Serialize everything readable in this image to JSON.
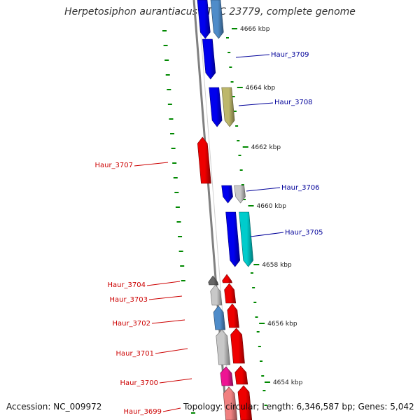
{
  "title": "Herpetosiphon aurantiacus ATCC 23779, complete genome",
  "footer": {
    "accession": "Accession: NC_009972",
    "topology": "Topology: circular; Length: 6,346,587 bp; Genes: 5,042"
  },
  "colors": {
    "forward_label": "#cc0000",
    "reverse_label": "#000099",
    "backbone": "#808080",
    "gc_skew": "#008800"
  },
  "ticks": [
    {
      "label": "4666 kbp"
    },
    {
      "label": "4664 kbp"
    },
    {
      "label": "4662 kbp"
    },
    {
      "label": "4660 kbp"
    },
    {
      "label": "4658 kbp"
    },
    {
      "label": "4656 kbp"
    },
    {
      "label": "4654 kbp"
    }
  ],
  "labels": [
    {
      "text": "Haur_3709",
      "strand": "reverse"
    },
    {
      "text": "Haur_3708",
      "strand": "reverse"
    },
    {
      "text": "Haur_3707",
      "strand": "forward"
    },
    {
      "text": "Haur_3706",
      "strand": "reverse"
    },
    {
      "text": "Haur_3705",
      "strand": "reverse"
    },
    {
      "text": "Haur_3704",
      "strand": "forward"
    },
    {
      "text": "Haur_3703",
      "strand": "forward"
    },
    {
      "text": "Haur_3702",
      "strand": "forward"
    },
    {
      "text": "Haur_3701",
      "strand": "forward"
    },
    {
      "text": "Haur_3700",
      "strand": "forward"
    },
    {
      "text": "Haur_3699",
      "strand": "forward"
    }
  ],
  "genes": [
    {
      "color": "#0000ee",
      "strand": "reverse"
    },
    {
      "color": "#4f8cc9",
      "strand": "reverse"
    },
    {
      "color": "#0000ee",
      "strand": "reverse"
    },
    {
      "color": "#0000ee",
      "strand": "reverse"
    },
    {
      "color": "#bdb76b",
      "strand": "reverse"
    },
    {
      "color": "#ee0000",
      "strand": "forward"
    },
    {
      "color": "#0000ee",
      "strand": "reverse"
    },
    {
      "color": "#c8c8c8",
      "strand": "reverse"
    },
    {
      "color": "#0000ee",
      "strand": "reverse"
    },
    {
      "color": "#00cccc",
      "strand": "reverse"
    },
    {
      "color": "#666666",
      "strand": "forward"
    },
    {
      "color": "#ee0000",
      "strand": "forward"
    },
    {
      "color": "#c8c8c8",
      "strand": "forward"
    },
    {
      "color": "#ee0000",
      "strand": "forward"
    },
    {
      "color": "#4f8cc9",
      "strand": "forward"
    },
    {
      "color": "#ee0000",
      "strand": "forward"
    },
    {
      "color": "#c8c8c8",
      "strand": "forward"
    },
    {
      "color": "#ee0000",
      "strand": "forward"
    },
    {
      "color": "#ee1493",
      "strand": "forward"
    },
    {
      "color": "#ee0000",
      "strand": "forward"
    },
    {
      "color": "#f08080",
      "strand": "forward"
    },
    {
      "color": "#ee0000",
      "strand": "forward"
    }
  ]
}
